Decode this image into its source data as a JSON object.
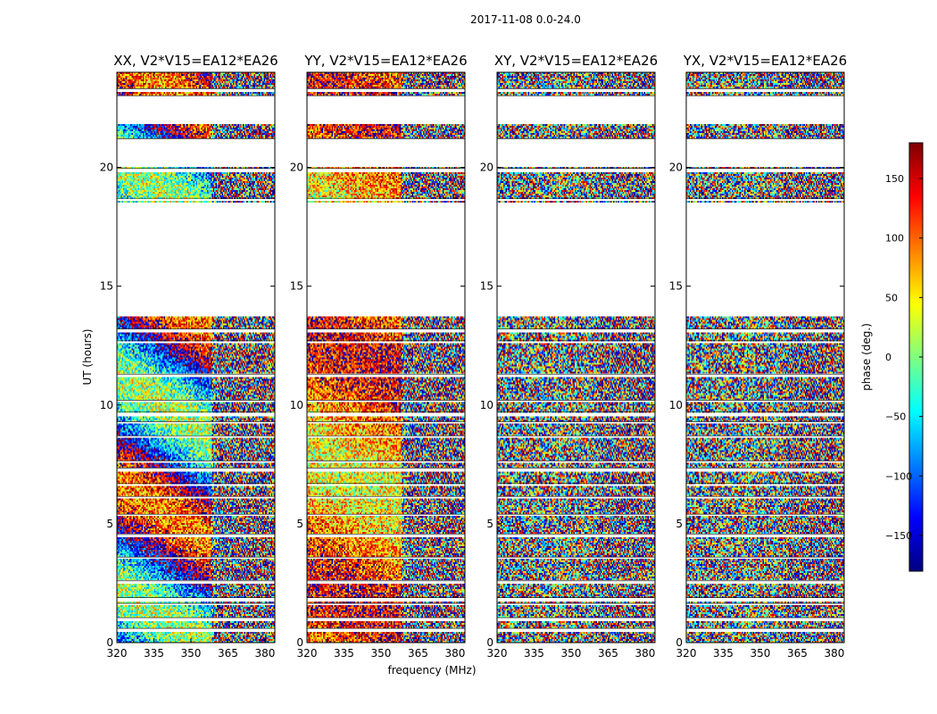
{
  "chart_data": {
    "type": "heatmap",
    "suptitle": "2017-11-08 0.0-24.0",
    "xlabel": "frequency (MHz)",
    "ylabel": "UT (hours)",
    "xlim": [
      320,
      384
    ],
    "ylim": [
      0,
      24
    ],
    "xticks": [
      320,
      335,
      350,
      365,
      380
    ],
    "yticks": [
      0,
      5,
      10,
      15,
      20
    ],
    "panels": [
      {
        "title": "XX, V2*V15=EA12*EA26",
        "pol": "XX",
        "coherent": true
      },
      {
        "title": "YY, V2*V15=EA12*EA26",
        "pol": "YY",
        "coherent": true
      },
      {
        "title": "XY, V2*V15=EA12*EA26",
        "pol": "XY",
        "coherent": false
      },
      {
        "title": "YX, V2*V15=EA12*EA26",
        "pol": "YX",
        "coherent": false
      }
    ],
    "data_gaps_hours": [
      [
        0.45,
        0.6
      ],
      [
        0.9,
        1.05
      ],
      [
        1.55,
        1.65
      ],
      [
        1.75,
        1.9
      ],
      [
        2.5,
        2.6
      ],
      [
        3.5,
        3.6
      ],
      [
        4.4,
        4.55
      ],
      [
        5.3,
        5.4
      ],
      [
        6.05,
        6.15
      ],
      [
        6.6,
        6.7
      ],
      [
        7.2,
        7.35
      ],
      [
        7.55,
        7.65
      ],
      [
        8.6,
        8.7
      ],
      [
        9.2,
        9.3
      ],
      [
        9.55,
        9.7
      ],
      [
        10.1,
        10.2
      ],
      [
        11.2,
        11.3
      ],
      [
        12.6,
        12.7
      ],
      [
        13.05,
        13.2
      ],
      [
        18.6,
        18.7
      ],
      [
        19.8,
        19.95
      ],
      [
        20.0,
        21.2
      ],
      [
        21.8,
        23.0
      ],
      [
        23.2,
        23.3
      ]
    ],
    "flagged_blocks_hours": [
      [
        13.75,
        18.5
      ]
    ],
    "colorbar": {
      "label": "phase (deg.)",
      "range": [
        -180,
        180
      ],
      "ticks": [
        -150,
        -100,
        -50,
        0,
        50,
        100,
        150
      ],
      "tick_labels": [
        "−150",
        "−100",
        "−50",
        "0",
        "50",
        "100",
        "150"
      ],
      "colormap": [
        "#00007f",
        "#0000ff",
        "#007fff",
        "#00ffff",
        "#7fff7f",
        "#ffff00",
        "#ff7f00",
        "#ff0000",
        "#7f0000"
      ]
    }
  }
}
